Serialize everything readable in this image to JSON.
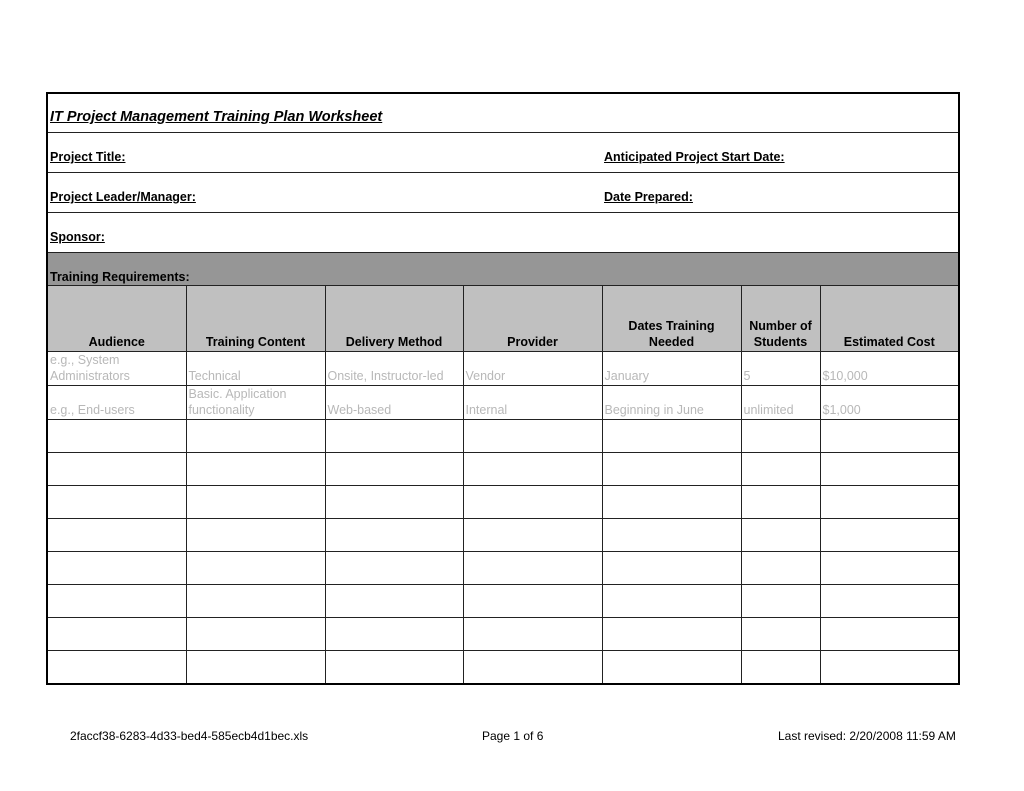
{
  "title": "IT Project Management Training Plan Worksheet",
  "fields": {
    "project_title": "Project Title:",
    "start_date": "Anticipated Project Start Date:",
    "leader": "Project Leader/Manager:",
    "date_prepared": "Date Prepared:",
    "sponsor": "Sponsor:"
  },
  "section": "Training Requirements:",
  "columns": [
    "Audience",
    "Training Content",
    "Delivery Method",
    "Provider",
    "Dates Training Needed",
    "Number of Students",
    "Estimated Cost"
  ],
  "rows": [
    [
      "e.g., System Administrators",
      "Technical",
      "Onsite, Instructor-led",
      "Vendor",
      "January",
      "5",
      "$10,000"
    ],
    [
      "e.g., End-users",
      "Basic. Application functionality",
      "Web-based",
      "Internal",
      "Beginning in June",
      "unlimited",
      "$1,000"
    ],
    [
      "",
      "",
      "",
      "",
      "",
      "",
      ""
    ],
    [
      "",
      "",
      "",
      "",
      "",
      "",
      ""
    ],
    [
      "",
      "",
      "",
      "",
      "",
      "",
      ""
    ],
    [
      "",
      "",
      "",
      "",
      "",
      "",
      ""
    ],
    [
      "",
      "",
      "",
      "",
      "",
      "",
      ""
    ],
    [
      "",
      "",
      "",
      "",
      "",
      "",
      ""
    ],
    [
      "",
      "",
      "",
      "",
      "",
      "",
      ""
    ],
    [
      "",
      "",
      "",
      "",
      "",
      "",
      ""
    ]
  ],
  "footer": {
    "filename": "2faccf38-6283-4d33-bed4-585ecb4d1bec.xls",
    "page": "Page 1 of 6",
    "revised": "Last revised: 2/20/2008 11:59 AM"
  }
}
